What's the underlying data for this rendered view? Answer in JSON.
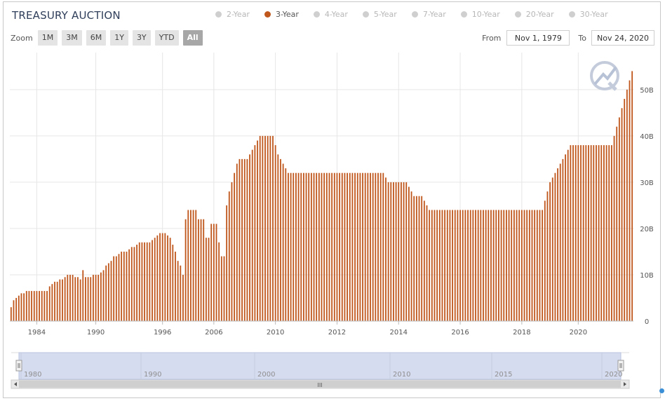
{
  "title": "TREASURY AUCTION",
  "legend": [
    {
      "label": "2-Year",
      "active": false
    },
    {
      "label": "3-Year",
      "active": true
    },
    {
      "label": "4-Year",
      "active": false
    },
    {
      "label": "5-Year",
      "active": false
    },
    {
      "label": "7-Year",
      "active": false
    },
    {
      "label": "10-Year",
      "active": false
    },
    {
      "label": "20-Year",
      "active": false
    },
    {
      "label": "30-Year",
      "active": false
    }
  ],
  "zoom": {
    "label": "Zoom",
    "buttons": [
      "1M",
      "3M",
      "6M",
      "1Y",
      "3Y",
      "YTD",
      "All"
    ],
    "active": "All"
  },
  "range": {
    "from_label": "From",
    "from_value": "Nov 1, 1979",
    "to_label": "To",
    "to_value": "Nov 24, 2020"
  },
  "colors": {
    "bar": "#c0581e",
    "active_dot": "#c0581e",
    "inactive_dot": "#cfcfcf",
    "navigator_fill": "#d6dcf0",
    "grid": "#e6e6e6"
  },
  "logo_icon": "watermark-logo-icon",
  "chart_data": {
    "type": "bar",
    "series_name": "3-Year",
    "y_ticks": [
      "0",
      "10B",
      "20B",
      "30B",
      "40B",
      "50B"
    ],
    "y_tick_values": [
      0,
      10,
      20,
      30,
      40,
      50
    ],
    "ylim": [
      0,
      58
    ],
    "y_unit": "B",
    "x_ticks": [
      "1984",
      "1990",
      "1996",
      "2006",
      "2010",
      "2012",
      "2014",
      "2016",
      "2018",
      "2020"
    ],
    "values": [
      3,
      4.5,
      5,
      5.5,
      6,
      6,
      6.5,
      6.5,
      6.5,
      6.5,
      6.5,
      6.5,
      6.5,
      6.5,
      6.5,
      7.5,
      8,
      8.5,
      8.5,
      9,
      9,
      9.5,
      10,
      10,
      10,
      9.5,
      9.5,
      9,
      11,
      9.5,
      9.5,
      9.5,
      10,
      10,
      10,
      10.5,
      11,
      12,
      12.5,
      13,
      14,
      14,
      14.5,
      15,
      15,
      15,
      15.5,
      16,
      16,
      16.5,
      17,
      17,
      17,
      17,
      17,
      17.5,
      18,
      18.5,
      19,
      19,
      19,
      18.5,
      18,
      16.5,
      15,
      13,
      12,
      10,
      22,
      24,
      24,
      24,
      24,
      22,
      22,
      22,
      18,
      18,
      21,
      21,
      21,
      17,
      14,
      14,
      25,
      28,
      30,
      32,
      34,
      35,
      35,
      35,
      35,
      36,
      37,
      38,
      39,
      40,
      40,
      40,
      40,
      40,
      40,
      38,
      36,
      35,
      34,
      33,
      32,
      32,
      32,
      32,
      32,
      32,
      32,
      32,
      32,
      32,
      32,
      32,
      32,
      32,
      32,
      32,
      32,
      32,
      32,
      32,
      32,
      32,
      32,
      32,
      32,
      32,
      32,
      32,
      32,
      32,
      32,
      32,
      32,
      32,
      32,
      32,
      32,
      32,
      31,
      30,
      30,
      30,
      30,
      30,
      30,
      30,
      30,
      29,
      28,
      27,
      27,
      27,
      27,
      26,
      25,
      24,
      24,
      24,
      24,
      24,
      24,
      24,
      24,
      24,
      24,
      24,
      24,
      24,
      24,
      24,
      24,
      24,
      24,
      24,
      24,
      24,
      24,
      24,
      24,
      24,
      24,
      24,
      24,
      24,
      24,
      24,
      24,
      24,
      24,
      24,
      24,
      24,
      24,
      24,
      24,
      24,
      24,
      24,
      24,
      24,
      26,
      28,
      30,
      31,
      32,
      33,
      34,
      35,
      36,
      37,
      38,
      38,
      38,
      38,
      38,
      38,
      38,
      38,
      38,
      38,
      38,
      38,
      38,
      38,
      38,
      38,
      38,
      40,
      42,
      44,
      46,
      48,
      50,
      52,
      54
    ],
    "x_tick_bar_index": [
      10,
      33,
      59,
      79,
      103,
      127,
      151,
      175,
      199,
      221
    ]
  },
  "navigator": {
    "labels": [
      "1980",
      "1990",
      "2000",
      "2010",
      "2015",
      "2020"
    ],
    "scroll_grip": "III"
  }
}
